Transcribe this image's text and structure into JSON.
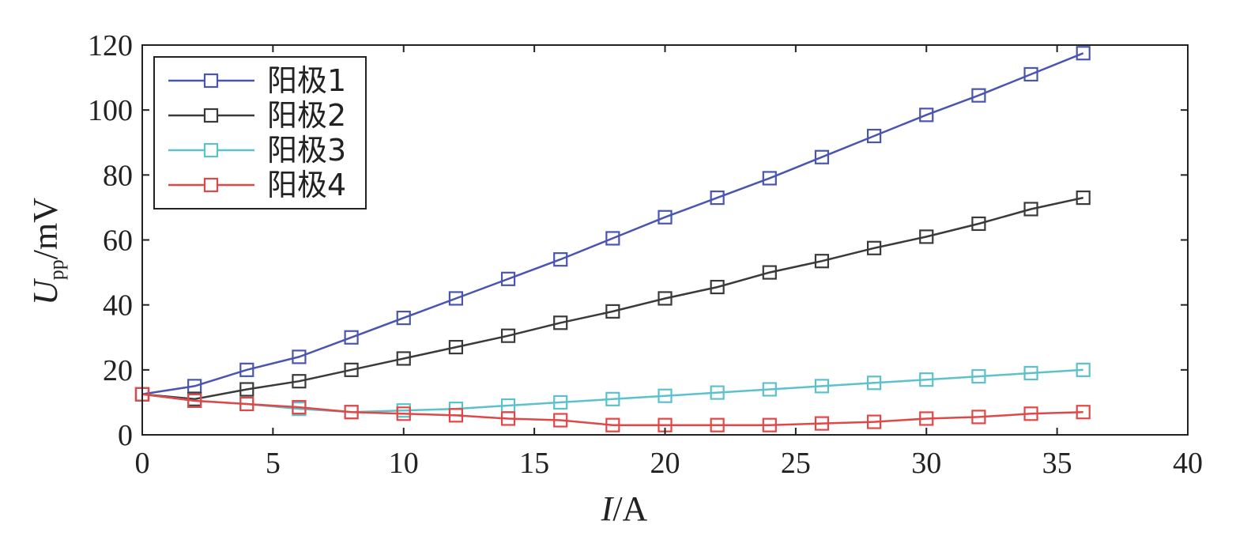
{
  "chart_data": {
    "type": "line",
    "xlabel": {
      "var": "I",
      "unit": "A"
    },
    "ylabel": {
      "var": "U",
      "sub": "pp",
      "unit": "mV"
    },
    "xlim": [
      0,
      40
    ],
    "ylim": [
      0,
      120
    ],
    "xticks": [
      "0",
      "5",
      "10",
      "15",
      "20",
      "25",
      "30",
      "35",
      "40"
    ],
    "yticks": [
      "0",
      "20",
      "40",
      "60",
      "80",
      "100",
      "120"
    ],
    "grid": false,
    "legend": "top-left",
    "x": [
      0,
      2,
      4,
      6,
      8,
      10,
      12,
      14,
      16,
      18,
      20,
      22,
      24,
      26,
      28,
      30,
      32,
      34,
      36
    ],
    "series": [
      {
        "name": "阳极1",
        "color": "#4a55b0",
        "marker": "square",
        "values": [
          12.5,
          15,
          20,
          24,
          30,
          36,
          42,
          48,
          54,
          60.5,
          67,
          73,
          79,
          85.5,
          92,
          98.5,
          104.5,
          111,
          117.5
        ]
      },
      {
        "name": "阳极2",
        "color": "#3a3a3a",
        "marker": "square",
        "values": [
          12.5,
          11,
          14,
          16.5,
          20,
          23.5,
          27,
          30.5,
          34.5,
          38,
          42,
          45.5,
          50,
          53.5,
          57.5,
          61,
          65,
          69.5,
          73
        ]
      },
      {
        "name": "阳极3",
        "color": "#5bc2cc",
        "marker": "square",
        "values": [
          12.5,
          10.5,
          9.5,
          8,
          7,
          7.5,
          8,
          9,
          10,
          11,
          12,
          13,
          14,
          15,
          16,
          17,
          18,
          19,
          20
        ]
      },
      {
        "name": "阳极4",
        "color": "#e04848",
        "marker": "square",
        "values": [
          12.5,
          10.5,
          9.5,
          8.5,
          7,
          6.5,
          6,
          5,
          4.5,
          3,
          3,
          3,
          3,
          3.5,
          4,
          5,
          5.5,
          6.5,
          7
        ]
      }
    ]
  }
}
